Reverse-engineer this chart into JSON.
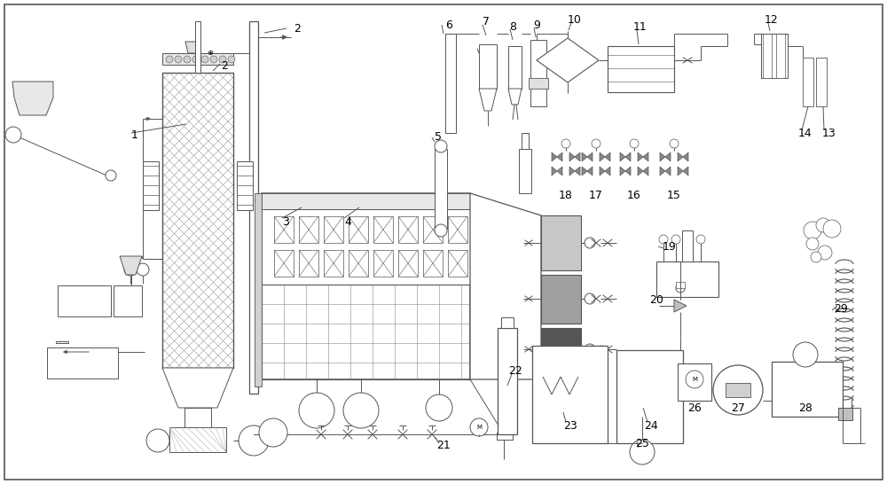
{
  "bg": "#ffffff",
  "lc": "#555555",
  "lw": 0.7
}
